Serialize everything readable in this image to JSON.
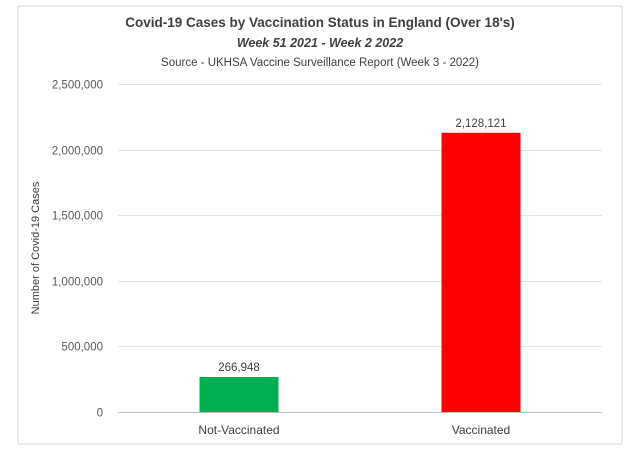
{
  "chart_data": {
    "type": "bar",
    "title": "Covid-19 Cases by Vaccination Status in England (Over 18's)",
    "subtitle": "Week 51 2021 - Week 2 2022",
    "source": "Source - UKHSA Vaccine Surveillance Report (Week 3 - 2022)",
    "xlabel": "",
    "ylabel": "Number of Covid-19 Cases",
    "categories": [
      "Not-Vaccinated",
      "Vaccinated"
    ],
    "values": [
      266948,
      2128121
    ],
    "data_labels": [
      "266,948",
      "2,128,121"
    ],
    "colors": [
      "#00b050",
      "#ff0000"
    ],
    "ylim": [
      0,
      2500000
    ],
    "yticks": [
      0,
      500000,
      1000000,
      1500000,
      2000000,
      2500000
    ],
    "ytick_labels": [
      "0",
      "500,000",
      "1,000,000",
      "1,500,000",
      "2,000,000",
      "2,500,000"
    ],
    "grid": true,
    "legend": "none"
  }
}
